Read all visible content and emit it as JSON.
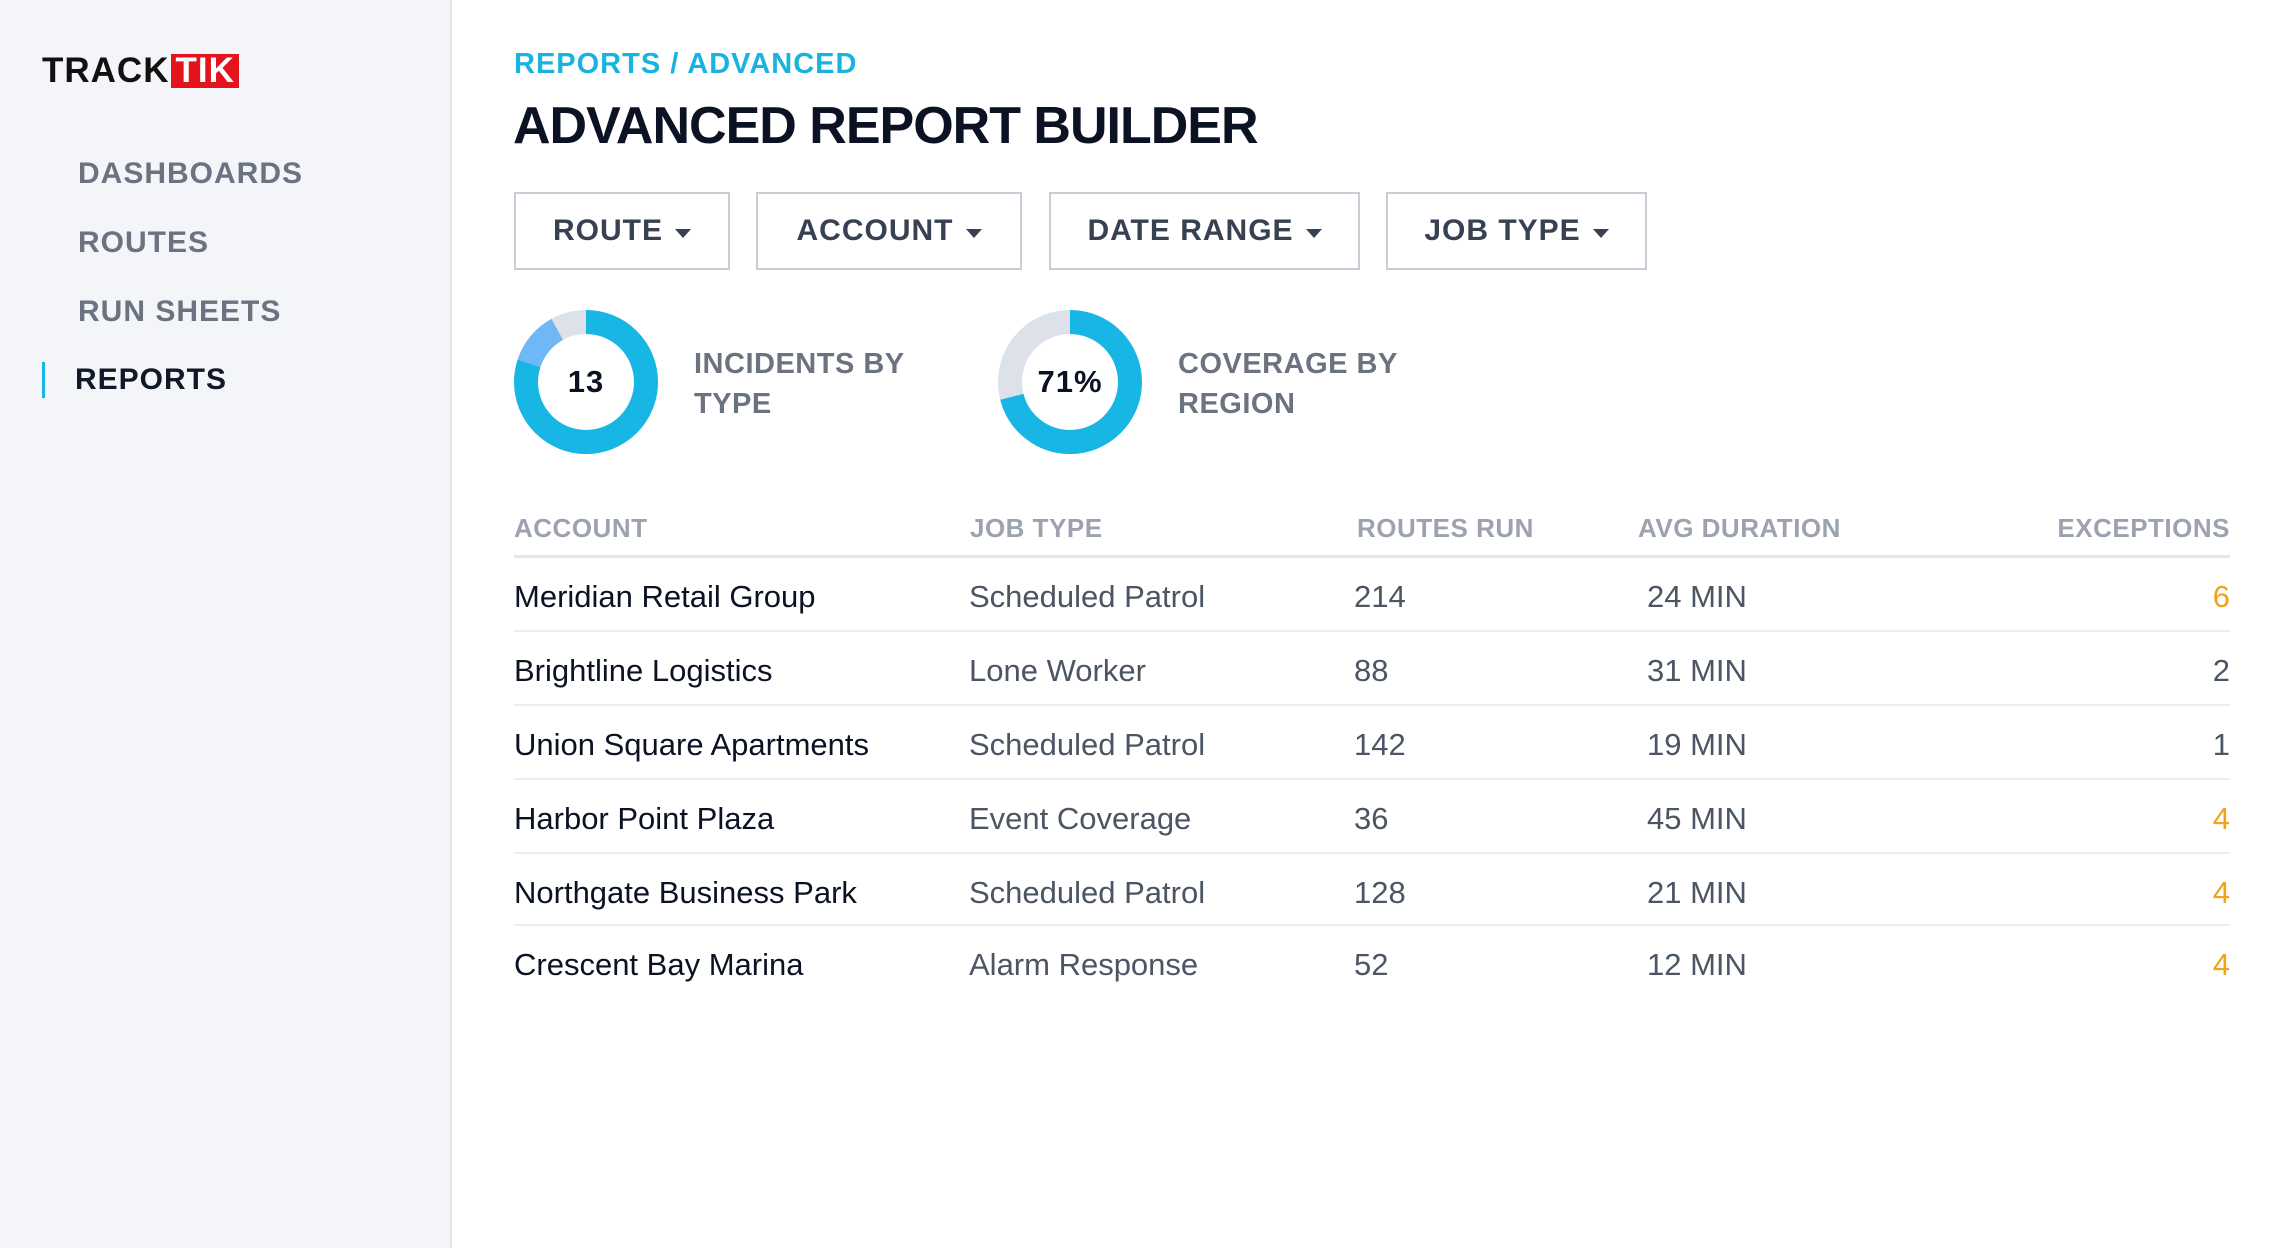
{
  "sidebar": {
    "logo": {
      "track": "TRACK",
      "tik": "TIK"
    },
    "items": [
      {
        "label": "DASHBOARDS",
        "active": false
      },
      {
        "label": "ROUTES",
        "active": false
      },
      {
        "label": "RUN SHEETS",
        "active": false
      },
      {
        "label": "REPORTS",
        "active": true
      }
    ]
  },
  "header": {
    "breadcrumb": "REPORTS / ADVANCED",
    "title": "ADVANCED REPORT BUILDER"
  },
  "filters": [
    {
      "label": "ROUTE"
    },
    {
      "label": "ACCOUNT"
    },
    {
      "label": "DATE RANGE"
    },
    {
      "label": "JOB TYPE"
    }
  ],
  "metrics": [
    {
      "value": "13",
      "label": "INCIDENTS BY TYPE",
      "primary_fraction": 0.8,
      "secondary_fraction": 0.12,
      "primary_color": "#17b6e5",
      "secondary_color": "#6fb8f5",
      "track_color": "#dde2ea"
    },
    {
      "value": "71%",
      "label": "COVERAGE BY REGION",
      "primary_fraction": 0.71,
      "secondary_fraction": 0,
      "primary_color": "#17b6e5",
      "secondary_color": "#6fb8f5",
      "track_color": "#dde2ea"
    }
  ],
  "table": {
    "columns": [
      "ACCOUNT",
      "JOB TYPE",
      "ROUTES RUN",
      "AVG DURATION",
      "EXCEPTIONS"
    ],
    "rows": [
      {
        "account": "Meridian Retail Group",
        "job_type": "Scheduled Patrol",
        "routes_run": "214",
        "avg_duration": "24 MIN",
        "exceptions": "6",
        "highlight": true
      },
      {
        "account": "Brightline Logistics",
        "job_type": "Lone Worker",
        "routes_run": "88",
        "avg_duration": "31 MIN",
        "exceptions": "2",
        "highlight": false
      },
      {
        "account": "Union Square Apartments",
        "job_type": "Scheduled Patrol",
        "routes_run": "142",
        "avg_duration": "19 MIN",
        "exceptions": "1",
        "highlight": false
      },
      {
        "account": "Harbor Point Plaza",
        "job_type": "Event Coverage",
        "routes_run": "36",
        "avg_duration": "45 MIN",
        "exceptions": "4",
        "highlight": true
      },
      {
        "account": "Northgate Business Park",
        "job_type": "Scheduled Patrol",
        "routes_run": "128",
        "avg_duration": "21 MIN",
        "exceptions": "4",
        "highlight": true
      },
      {
        "account": "Crescent Bay Marina",
        "job_type": "Alarm Response",
        "routes_run": "52",
        "avg_duration": "12 MIN",
        "exceptions": "4",
        "highlight": true
      }
    ]
  },
  "colors": {
    "accent": "#19b3e0",
    "warning": "#f0a21a",
    "logo_red": "#e3141b"
  }
}
